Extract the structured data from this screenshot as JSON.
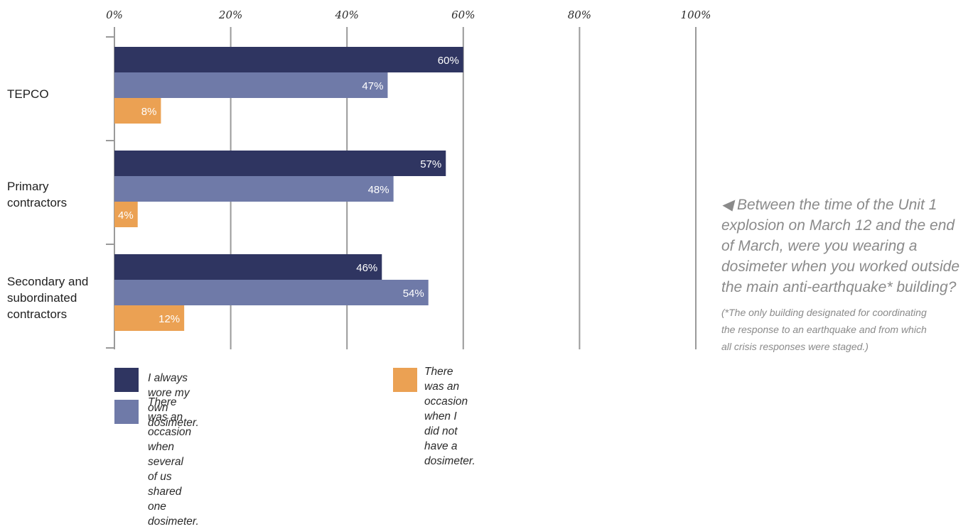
{
  "chart_data": {
    "type": "bar",
    "orientation": "horizontal",
    "categories": [
      "TEPCO",
      "Primary contractors",
      "Secondary and subordinated contractors"
    ],
    "category_display": [
      [
        "TEPCO"
      ],
      [
        "Primary",
        "contractors"
      ],
      [
        "Secondary and",
        "subordinated",
        "contractors"
      ]
    ],
    "series": [
      {
        "name": "I always wore my own dosimeter.",
        "values": [
          60,
          57,
          46
        ],
        "labels": [
          "60%",
          "57%",
          "46%"
        ],
        "color": "#2f3561"
      },
      {
        "name": "There was an occasion when several of us shared one dosimeter.",
        "values": [
          47,
          48,
          54
        ],
        "labels": [
          "47%",
          "48%",
          "54%"
        ],
        "color": "#6f7aa8"
      },
      {
        "name": "There was an occasion when I did not have a dosimeter.",
        "values": [
          8,
          4,
          12
        ],
        "labels": [
          "8%",
          "4%",
          "12%"
        ],
        "color": "#eba153"
      }
    ],
    "xlim": [
      0,
      100
    ],
    "ticks": [
      "0%",
      "20%",
      "40%",
      "60%",
      "80%",
      "100%"
    ],
    "grid": true,
    "legend_placement": "bottom",
    "xlabel": "",
    "ylabel": ""
  },
  "legend": {
    "item1": [
      "I always wore my own dosimeter."
    ],
    "item2": [
      "There was an occasion when several",
      "of us shared one dosimeter."
    ],
    "item3": [
      "There was an occasion when I",
      "did not have a dosimeter."
    ]
  },
  "question": "◀ Between the time of the Unit 1 explosion on March 12 and the end of March, were you wearing a dosimeter when you worked outside the main anti-earthquake* building?",
  "footnote": "(*The only building designated for coordinating the response to an earthquake and from which all crisis responses were staged.)"
}
